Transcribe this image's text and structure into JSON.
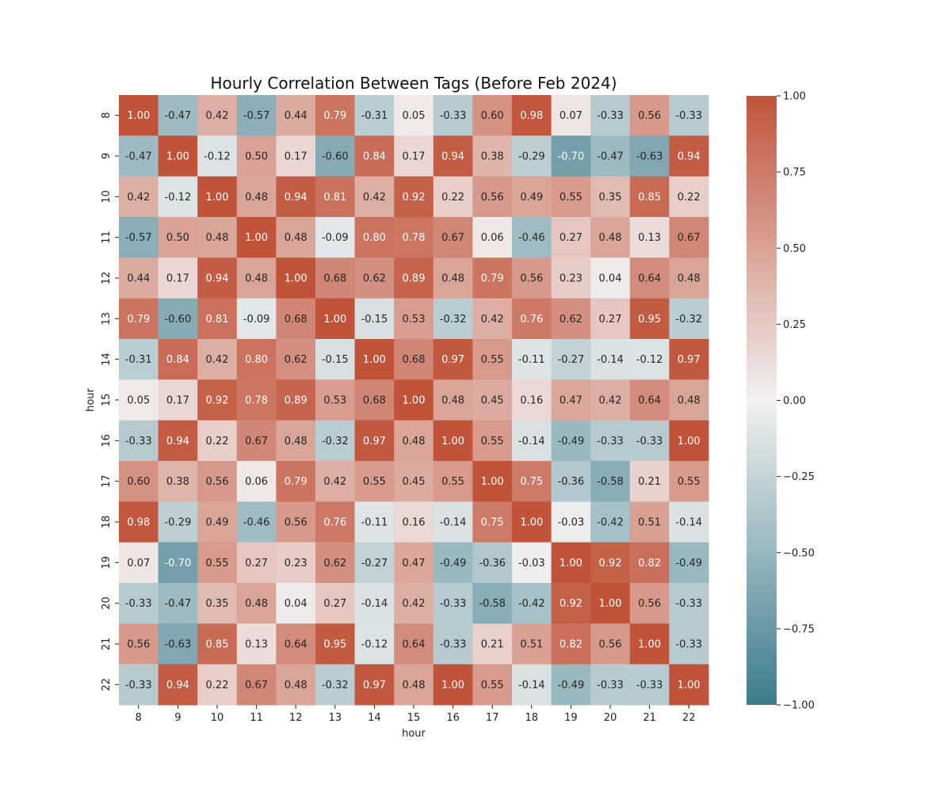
{
  "chart_data": {
    "type": "heatmap",
    "title": "Hourly Correlation Between Tags (Before Feb 2024)",
    "xlabel": "hour",
    "ylabel": "hour",
    "x_categories": [
      "8",
      "9",
      "10",
      "11",
      "12",
      "13",
      "14",
      "15",
      "16",
      "17",
      "18",
      "19",
      "20",
      "21",
      "22"
    ],
    "y_categories": [
      "8",
      "9",
      "10",
      "11",
      "12",
      "13",
      "14",
      "15",
      "16",
      "17",
      "18",
      "19",
      "20",
      "21",
      "22"
    ],
    "values": [
      [
        1.0,
        -0.47,
        0.42,
        -0.57,
        0.44,
        0.79,
        -0.31,
        0.05,
        -0.33,
        0.6,
        0.98,
        0.07,
        -0.33,
        0.56,
        -0.33
      ],
      [
        -0.47,
        1.0,
        -0.12,
        0.5,
        0.17,
        -0.6,
        0.84,
        0.17,
        0.94,
        0.38,
        -0.29,
        -0.7,
        -0.47,
        -0.63,
        0.94
      ],
      [
        0.42,
        -0.12,
        1.0,
        0.48,
        0.94,
        0.81,
        0.42,
        0.92,
        0.22,
        0.56,
        0.49,
        0.55,
        0.35,
        0.85,
        0.22
      ],
      [
        -0.57,
        0.5,
        0.48,
        1.0,
        0.48,
        -0.09,
        0.8,
        0.78,
        0.67,
        0.06,
        -0.46,
        0.27,
        0.48,
        0.13,
        0.67
      ],
      [
        0.44,
        0.17,
        0.94,
        0.48,
        1.0,
        0.68,
        0.62,
        0.89,
        0.48,
        0.79,
        0.56,
        0.23,
        0.04,
        0.64,
        0.48
      ],
      [
        0.79,
        -0.6,
        0.81,
        -0.09,
        0.68,
        1.0,
        -0.15,
        0.53,
        -0.32,
        0.42,
        0.76,
        0.62,
        0.27,
        0.95,
        -0.32
      ],
      [
        -0.31,
        0.84,
        0.42,
        0.8,
        0.62,
        -0.15,
        1.0,
        0.68,
        0.97,
        0.55,
        -0.11,
        -0.27,
        -0.14,
        -0.12,
        0.97
      ],
      [
        0.05,
        0.17,
        0.92,
        0.78,
        0.89,
        0.53,
        0.68,
        1.0,
        0.48,
        0.45,
        0.16,
        0.47,
        0.42,
        0.64,
        0.48
      ],
      [
        -0.33,
        0.94,
        0.22,
        0.67,
        0.48,
        -0.32,
        0.97,
        0.48,
        1.0,
        0.55,
        -0.14,
        -0.49,
        -0.33,
        -0.33,
        1.0
      ],
      [
        0.6,
        0.38,
        0.56,
        0.06,
        0.79,
        0.42,
        0.55,
        0.45,
        0.55,
        1.0,
        0.75,
        -0.36,
        -0.58,
        0.21,
        0.55
      ],
      [
        0.98,
        -0.29,
        0.49,
        -0.46,
        0.56,
        0.76,
        -0.11,
        0.16,
        -0.14,
        0.75,
        1.0,
        -0.03,
        -0.42,
        0.51,
        -0.14
      ],
      [
        0.07,
        -0.7,
        0.55,
        0.27,
        0.23,
        0.62,
        -0.27,
        0.47,
        -0.49,
        -0.36,
        -0.03,
        1.0,
        0.92,
        0.82,
        -0.49
      ],
      [
        -0.33,
        -0.47,
        0.35,
        0.48,
        0.04,
        0.27,
        -0.14,
        0.42,
        -0.33,
        -0.58,
        -0.42,
        0.92,
        1.0,
        0.56,
        -0.33
      ],
      [
        0.56,
        -0.63,
        0.85,
        0.13,
        0.64,
        0.95,
        -0.12,
        0.64,
        -0.33,
        0.21,
        0.51,
        0.82,
        0.56,
        1.0,
        -0.33
      ],
      [
        -0.33,
        0.94,
        0.22,
        0.67,
        0.48,
        -0.32,
        0.97,
        0.48,
        1.0,
        0.55,
        -0.14,
        -0.49,
        -0.33,
        -0.33,
        1.0
      ]
    ],
    "vmin": -1.0,
    "vmax": 1.0,
    "colorbar_ticks": [
      1.0,
      0.75,
      0.5,
      0.25,
      0.0,
      -0.25,
      -0.5,
      -0.75,
      -1.0
    ],
    "colorbar_tick_labels": [
      "1.00",
      "0.75",
      "0.50",
      "0.25",
      "0.00",
      "−0.25",
      "−0.50",
      "−0.75",
      "−1.00"
    ],
    "colors": {
      "low": "#3d7c8d",
      "mid": "#f2f1f1",
      "high": "#c1533a"
    },
    "annotations": "values shown in each cell with 2 decimals"
  }
}
